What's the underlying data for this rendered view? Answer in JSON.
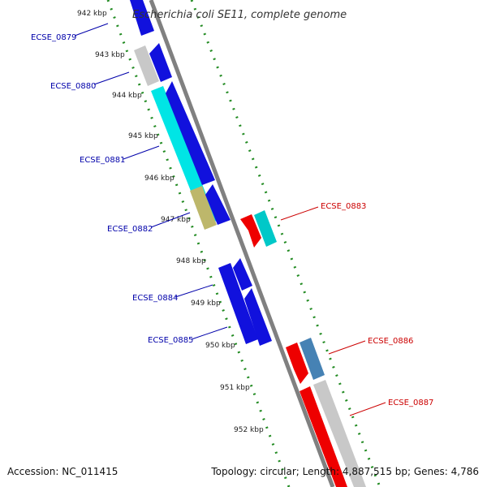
{
  "title": "Escherichia coli SE11, complete genome",
  "accession_text": "Accession: NC_011415",
  "topology_text": "Topology: circular; Length: 4,887,515 bp; Genes: 4,786",
  "colors": {
    "blue_gene": "#1111dd",
    "cyan_gene": "#00e5e5",
    "olive_gene": "#bdb76b",
    "grey_gene": "#c8c8c8",
    "red_gene": "#ee0000",
    "steelblue_gene": "#4682b4",
    "tick_green": "#228b22",
    "backbone": "#808080",
    "label_blue": "#0000aa",
    "label_red": "#cc0000"
  },
  "scale_labels": [
    "942 kbp",
    "943 kbp",
    "944 kbp",
    "945 kbp",
    "946 kbp",
    "947 kbp",
    "948 kbp",
    "949 kbp",
    "950 kbp",
    "951 kbp",
    "952 kbp"
  ],
  "gene_labels_left": [
    "ECSE_0879",
    "ECSE_0880",
    "ECSE_0881",
    "ECSE_0882",
    "ECSE_0884",
    "ECSE_0885"
  ],
  "gene_labels_right": [
    "ECSE_0883",
    "ECSE_0886",
    "ECSE_0887"
  ]
}
